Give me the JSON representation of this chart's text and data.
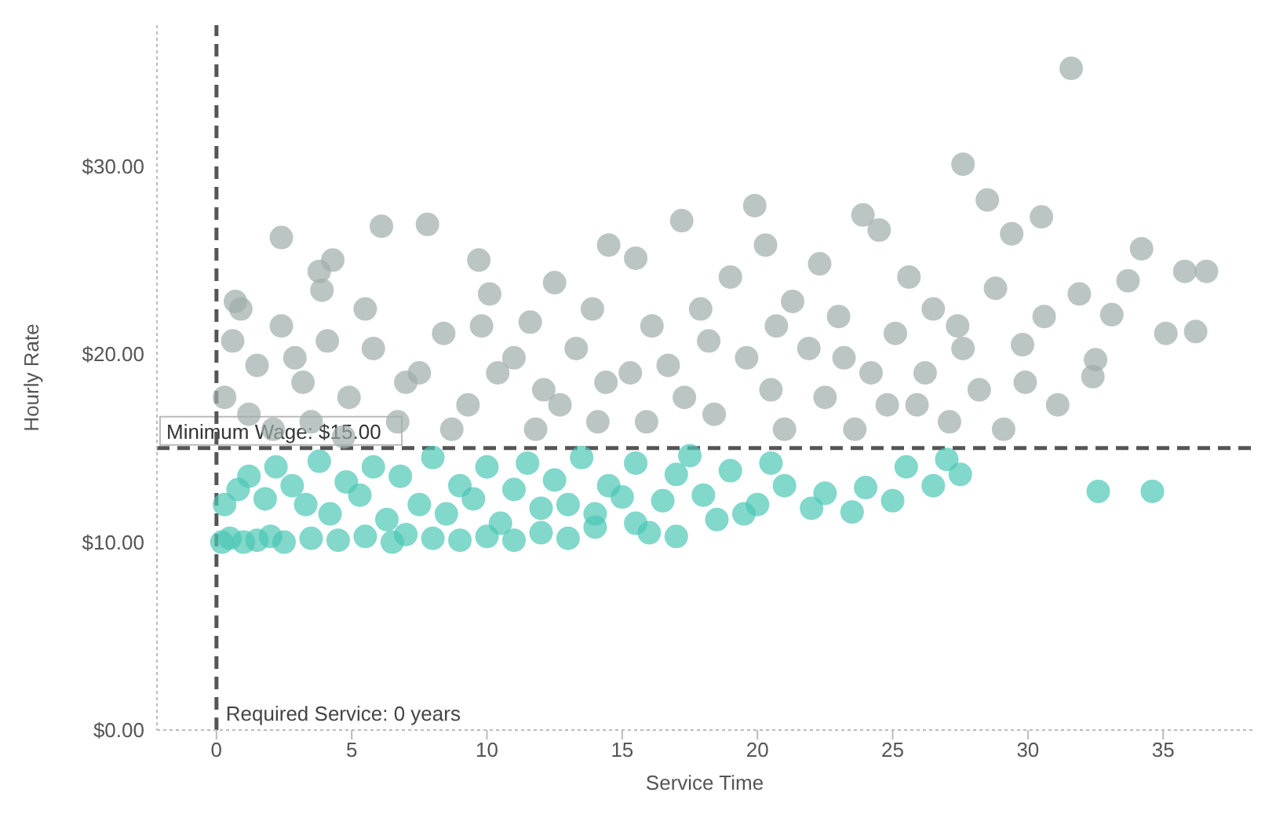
{
  "chart_data": {
    "type": "scatter",
    "xlabel": "Service Time",
    "ylabel": "Hourly Rate",
    "xlim": [
      -2.2,
      38.3
    ],
    "xticks": [
      0,
      5,
      10,
      15,
      20,
      25,
      30,
      35
    ],
    "ylim": [
      0,
      37.5
    ],
    "yticks": [
      {
        "value": 0,
        "label": "$0.00"
      },
      {
        "value": 10,
        "label": "$10.00"
      },
      {
        "value": 20,
        "label": "$20.00"
      },
      {
        "value": 30,
        "label": "$30.00"
      }
    ],
    "grid": false,
    "legend": false,
    "marker": "circle",
    "ref_lines": [
      {
        "axis": "y",
        "value": 15,
        "label": "Minimum Wage: $15.00",
        "line_style": "dashed",
        "color": "#555555"
      },
      {
        "axis": "x",
        "value": 0,
        "label": "Required Service: 0 years",
        "line_style": "dashed",
        "color": "#555555"
      }
    ],
    "series": [
      {
        "color": "#9eaeab",
        "x": [
          2.4,
          0.7,
          3.8,
          4.3,
          3.9,
          6.1,
          7.8,
          9.7,
          11.6,
          12.5,
          14.5,
          15.5,
          17.2,
          19.9,
          20.3,
          22.3,
          23.9,
          24.5,
          27.6,
          28.5,
          29.4,
          30.5,
          31.6,
          31.9,
          32.5,
          33.1,
          33.7,
          34.2,
          35.1,
          35.8,
          36.6,
          36.2,
          32.4,
          31.1,
          30.6,
          29.8,
          28.8,
          27.6,
          26.5,
          25.6,
          25.1,
          24.2,
          23,
          21.9,
          21.3,
          20.5,
          19,
          18.2,
          17.3,
          16.1,
          15.3,
          14.1,
          13.3,
          12.1,
          11,
          10.1,
          9.3,
          8.4,
          7.5,
          6.7,
          5.8,
          4.9,
          4.1,
          3.2,
          2.4,
          1.5,
          0.6,
          0.3,
          1.2,
          2.1,
          3.5,
          4.7,
          7,
          8.7,
          10.4,
          11.8,
          12.7,
          14.4,
          15.9,
          16.7,
          18.4,
          19.6,
          21,
          22.5,
          23.6,
          24.8,
          26.2,
          27.1,
          28.2,
          29.1,
          29.9,
          27.4,
          25.9,
          23.2,
          20.7,
          17.9,
          13.9,
          9.8,
          5.5,
          0.9,
          2.9
        ],
        "values": [
          26.2,
          22.8,
          24.4,
          25,
          23.4,
          26.8,
          26.9,
          25,
          21.7,
          23.8,
          25.8,
          25.1,
          27.1,
          27.9,
          25.8,
          24.8,
          27.4,
          26.6,
          30.1,
          28.2,
          26.4,
          27.3,
          35.2,
          23.2,
          19.7,
          22.1,
          23.9,
          25.6,
          21.1,
          24.4,
          24.4,
          21.2,
          18.8,
          17.3,
          22,
          20.5,
          23.5,
          20.3,
          22.4,
          24.1,
          21.1,
          19,
          22,
          20.3,
          22.8,
          18.1,
          24.1,
          20.7,
          17.7,
          21.5,
          19,
          16.4,
          20.3,
          18.1,
          19.8,
          23.2,
          17.3,
          21.1,
          19,
          16.4,
          20.3,
          17.7,
          20.7,
          18.5,
          21.5,
          19.4,
          20.7,
          17.7,
          16.8,
          16,
          16.4,
          15.6,
          18.5,
          16,
          19,
          16,
          17.3,
          18.5,
          16.4,
          19.4,
          16.8,
          19.8,
          16,
          17.7,
          16,
          17.3,
          19,
          16.4,
          18.1,
          16,
          18.5,
          21.5,
          17.3,
          19.8,
          21.5,
          22.4,
          22.4,
          21.5,
          22.4,
          22.4,
          19.8
        ]
      },
      {
        "color": "#4cc7b5",
        "x": [
          0.2,
          0.5,
          1,
          1.5,
          2,
          2.5,
          3.5,
          4.5,
          5.5,
          6.5,
          7,
          8,
          9,
          10,
          11,
          12,
          13,
          14,
          15.5,
          16,
          17,
          18.5,
          19.5,
          0.3,
          0.8,
          1.2,
          1.8,
          2.2,
          2.8,
          3.3,
          3.8,
          4.2,
          4.8,
          5.3,
          5.8,
          6.3,
          6.8,
          7.5,
          8,
          8.5,
          9,
          9.5,
          10,
          10.5,
          11,
          11.5,
          12,
          12.5,
          13,
          13.5,
          14,
          14.5,
          15,
          15.5,
          16.5,
          17,
          17.5,
          18,
          19,
          20,
          20.5,
          21,
          22,
          22.5,
          23.5,
          24,
          25,
          25.5,
          26.5,
          27,
          27.5,
          32.6,
          34.6
        ],
        "values": [
          10,
          10.2,
          10,
          10.1,
          10.3,
          10,
          10.2,
          10.1,
          10.3,
          10,
          10.4,
          10.2,
          10.1,
          10.3,
          10.1,
          10.5,
          10.2,
          10.8,
          11,
          10.5,
          10.3,
          11.2,
          11.5,
          12,
          12.8,
          13.5,
          12.3,
          14,
          13,
          12,
          14.3,
          11.5,
          13.2,
          12.5,
          14,
          11.2,
          13.5,
          12,
          14.5,
          11.5,
          13,
          12.3,
          14,
          11,
          12.8,
          14.2,
          11.8,
          13.3,
          12,
          14.5,
          11.5,
          13,
          12.4,
          14.2,
          12.2,
          13.6,
          14.6,
          12.5,
          13.8,
          12,
          14.2,
          13,
          11.8,
          12.6,
          11.6,
          12.9,
          12.2,
          14,
          13,
          14.4,
          13.6,
          12.7,
          12.7
        ]
      }
    ]
  }
}
